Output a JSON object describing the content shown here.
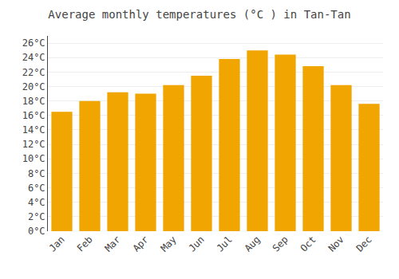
{
  "chart_data": {
    "type": "bar",
    "title": "Average monthly temperatures (°C ) in Tan-Tan",
    "categories": [
      "Jan",
      "Feb",
      "Mar",
      "Apr",
      "May",
      "Jun",
      "Jul",
      "Aug",
      "Sep",
      "Oct",
      "Nov",
      "Dec"
    ],
    "values": [
      16.5,
      18.0,
      19.2,
      19.0,
      20.2,
      21.5,
      23.8,
      25.0,
      24.4,
      22.8,
      20.2,
      17.6
    ],
    "color": "#F0A500",
    "ylim": [
      0,
      27
    ],
    "yticks": [
      {
        "value": 0,
        "label": "0°C"
      },
      {
        "value": 2,
        "label": "2°C"
      },
      {
        "value": 4,
        "label": "4°C"
      },
      {
        "value": 6,
        "label": "6°C"
      },
      {
        "value": 8,
        "label": "8°C"
      },
      {
        "value": 10,
        "label": "10°C"
      },
      {
        "value": 12,
        "label": "12°C"
      },
      {
        "value": 14,
        "label": "14°C"
      },
      {
        "value": 16,
        "label": "16°C"
      },
      {
        "value": 18,
        "label": "18°C"
      },
      {
        "value": 20,
        "label": "20°C"
      },
      {
        "value": 22,
        "label": "22°C"
      },
      {
        "value": 24,
        "label": "24°C"
      },
      {
        "value": 26,
        "label": "26°C"
      }
    ],
    "grid": true
  }
}
